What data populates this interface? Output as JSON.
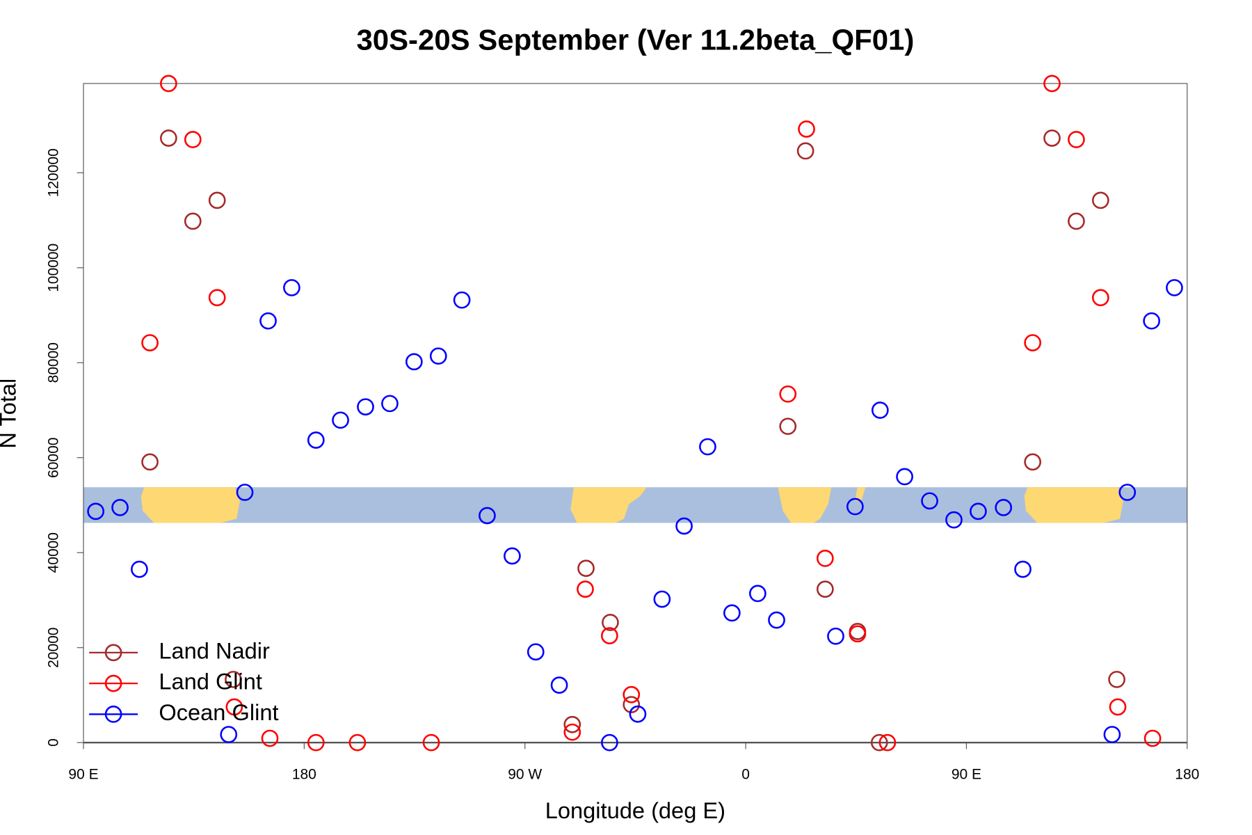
{
  "chart_data": {
    "type": "scatter",
    "title": "30S-20S September (Ver 11.2beta_QF01)",
    "x_label": "Longitude (deg E)",
    "y_label": "N Total",
    "xlim": [
      90,
      540
    ],
    "ylim": [
      0,
      138800
    ],
    "xticks": [
      {
        "value": 90,
        "label": "90 E"
      },
      180,
      {
        "value": 270,
        "label": "90 W"
      },
      {
        "value": 360,
        "label": "0"
      },
      {
        "value": 450,
        "label": "90 E"
      },
      {
        "value": 540,
        "label": "180"
      }
    ],
    "yticks": [
      0,
      20000,
      40000,
      60000,
      80000,
      100000,
      120000
    ],
    "legend": "bottom-left",
    "series": [
      {
        "name": "Land Nadir",
        "color": "#a52a2a",
        "x": [
          124.7,
          134.6,
          144.5,
          117.1,
          151.1,
          294.9,
          304.8,
          313.4,
          289.3,
          384.4,
          377.2,
          392.4,
          405.6,
          414.5,
          484.9,
          494.8,
          504.7,
          477.0,
          511.3
        ],
        "values": [
          127300,
          109800,
          114200,
          59100,
          13300,
          36700,
          25300,
          8000,
          3800,
          124600,
          66600,
          32300,
          23400,
          0,
          127300,
          109800,
          114200,
          59100,
          13300
        ]
      },
      {
        "name": "Land Glint",
        "color": "#ff0000",
        "x": [
          124.7,
          134.6,
          144.5,
          117.1,
          151.5,
          166.0,
          184.8,
          201.7,
          231.8,
          294.6,
          304.5,
          313.4,
          289.3,
          384.8,
          377.2,
          392.4,
          405.6,
          417.8,
          484.9,
          494.8,
          504.7,
          477.0,
          511.7,
          525.9
        ],
        "values": [
          138800,
          127000,
          93700,
          84200,
          7500,
          900,
          0,
          0,
          0,
          32300,
          22500,
          10100,
          2200,
          129200,
          73400,
          38800,
          22900,
          0,
          138800,
          127000,
          93700,
          84200,
          7500,
          900
        ]
      },
      {
        "name": "Ocean Glint",
        "color": "#0000ff",
        "x": [
          95.0,
          104.9,
          112.8,
          149.2,
          155.8,
          165.3,
          174.9,
          184.8,
          194.8,
          205.0,
          214.9,
          224.8,
          234.7,
          244.3,
          254.6,
          264.8,
          274.4,
          284.0,
          304.5,
          316.0,
          325.9,
          334.9,
          344.5,
          354.4,
          364.9,
          372.6,
          396.7,
          404.6,
          414.8,
          424.8,
          435.0,
          444.9,
          454.8,
          465.1,
          473.0,
          509.4,
          515.6,
          525.5,
          534.8
        ],
        "values": [
          48700,
          49500,
          36500,
          1700,
          52700,
          88800,
          95800,
          63700,
          67900,
          70700,
          71400,
          80200,
          81400,
          93200,
          47800,
          39300,
          19100,
          12100,
          0,
          6000,
          30200,
          45600,
          62300,
          27300,
          31400,
          25800,
          22400,
          49700,
          70000,
          56000,
          50900,
          46900,
          48700,
          49500,
          36500,
          1700,
          52700,
          88800,
          95800
        ]
      }
    ]
  }
}
